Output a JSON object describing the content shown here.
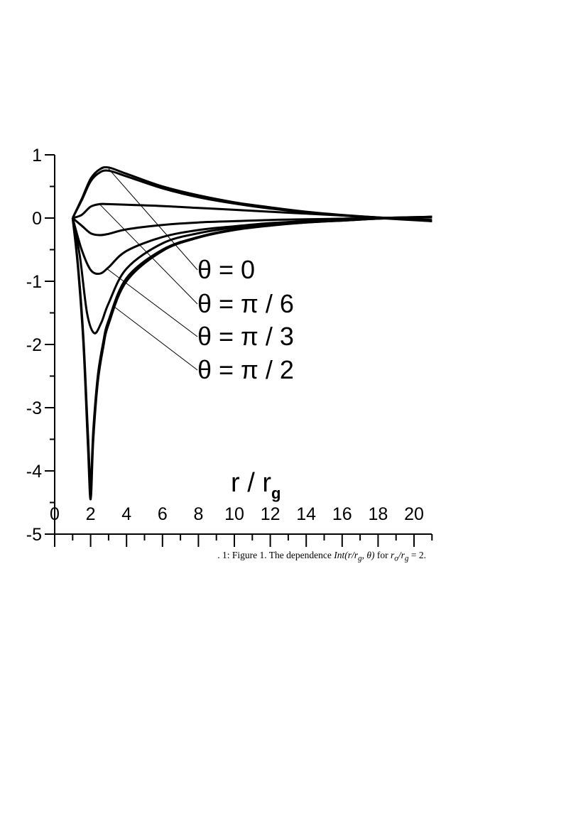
{
  "chart_data": {
    "type": "line",
    "xlabel_main": "r / r",
    "xlabel_sub": "g",
    "ylabel": "",
    "xlim": [
      0,
      21
    ],
    "ylim": [
      -5,
      1
    ],
    "x_ticks": [
      "0",
      "2",
      "4",
      "6",
      "8",
      "10",
      "12",
      "14",
      "16",
      "18",
      "20"
    ],
    "y_ticks": [
      "1",
      "0",
      "-1",
      "-2",
      "-3",
      "-4",
      "-5"
    ],
    "grid": false,
    "annotations": [
      "θ = 0",
      "θ = π / 6",
      "θ = π / 3",
      "θ = π / 2"
    ],
    "series": [
      {
        "name": "θ = 0",
        "points": [
          [
            1.0,
            0.0
          ],
          [
            1.5,
            0.3
          ],
          [
            2,
            0.62
          ],
          [
            2.5,
            0.77
          ],
          [
            3,
            0.8
          ],
          [
            4,
            0.7
          ],
          [
            6,
            0.5
          ],
          [
            8,
            0.36
          ],
          [
            10,
            0.25
          ],
          [
            12,
            0.17
          ],
          [
            14,
            0.1
          ],
          [
            16,
            0.05
          ],
          [
            18,
            0.01
          ],
          [
            21,
            -0.03
          ]
        ]
      },
      {
        "name": "",
        "points": [
          [
            1.0,
            0.0
          ],
          [
            1.5,
            0.28
          ],
          [
            2,
            0.58
          ],
          [
            2.5,
            0.72
          ],
          [
            3,
            0.75
          ],
          [
            4,
            0.66
          ],
          [
            6,
            0.47
          ],
          [
            8,
            0.33
          ],
          [
            10,
            0.23
          ],
          [
            12,
            0.15
          ],
          [
            14,
            0.09
          ],
          [
            16,
            0.04
          ],
          [
            18,
            0.0
          ],
          [
            21,
            -0.05
          ]
        ]
      },
      {
        "name": "θ = π / 6",
        "points": [
          [
            1.0,
            0.0
          ],
          [
            1.5,
            0.05
          ],
          [
            2,
            0.18
          ],
          [
            2.5,
            0.22
          ],
          [
            3,
            0.22
          ],
          [
            4,
            0.21
          ],
          [
            6,
            0.19
          ],
          [
            8,
            0.16
          ],
          [
            10,
            0.13
          ],
          [
            12,
            0.1
          ],
          [
            14,
            0.07
          ],
          [
            16,
            0.04
          ],
          [
            18,
            0.01
          ],
          [
            21,
            -0.05
          ]
        ]
      },
      {
        "name": "",
        "points": [
          [
            1.0,
            0.0
          ],
          [
            1.5,
            -0.12
          ],
          [
            2,
            -0.24
          ],
          [
            2.5,
            -0.27
          ],
          [
            3,
            -0.25
          ],
          [
            4,
            -0.18
          ],
          [
            6,
            -0.11
          ],
          [
            8,
            -0.07
          ],
          [
            10,
            -0.05
          ],
          [
            12,
            -0.03
          ],
          [
            14,
            -0.02
          ],
          [
            16,
            -0.01
          ],
          [
            18,
            0.0
          ],
          [
            21,
            0.01
          ]
        ]
      },
      {
        "name": "θ = π / 3",
        "points": [
          [
            1.0,
            0.0
          ],
          [
            1.5,
            -0.5
          ],
          [
            2,
            -0.82
          ],
          [
            2.5,
            -0.88
          ],
          [
            3,
            -0.78
          ],
          [
            4,
            -0.52
          ],
          [
            6,
            -0.3
          ],
          [
            8,
            -0.19
          ],
          [
            10,
            -0.13
          ],
          [
            12,
            -0.08
          ],
          [
            14,
            -0.05
          ],
          [
            16,
            -0.02
          ],
          [
            18,
            0.0
          ],
          [
            21,
            0.02
          ]
        ]
      },
      {
        "name": "",
        "points": [
          [
            1.0,
            0.0
          ],
          [
            1.4,
            -0.6
          ],
          [
            1.8,
            -1.5
          ],
          [
            2.2,
            -1.82
          ],
          [
            2.6,
            -1.65
          ],
          [
            3,
            -1.35
          ],
          [
            4,
            -0.8
          ],
          [
            6,
            -0.4
          ],
          [
            8,
            -0.24
          ],
          [
            10,
            -0.15
          ],
          [
            12,
            -0.09
          ],
          [
            14,
            -0.05
          ],
          [
            16,
            -0.03
          ],
          [
            18,
            0.0
          ],
          [
            21,
            0.02
          ]
        ]
      },
      {
        "name": "θ = π / 2",
        "points": [
          [
            1.0,
            0.0
          ],
          [
            1.3,
            -0.8
          ],
          [
            1.6,
            -2.0
          ],
          [
            1.85,
            -3.6
          ],
          [
            2.0,
            -4.45
          ],
          [
            2.15,
            -3.5
          ],
          [
            2.4,
            -2.6
          ],
          [
            2.7,
            -2.05
          ],
          [
            3,
            -1.68
          ],
          [
            4,
            -1.0
          ],
          [
            6,
            -0.52
          ],
          [
            8,
            -0.31
          ],
          [
            10,
            -0.19
          ],
          [
            12,
            -0.12
          ],
          [
            14,
            -0.07
          ],
          [
            16,
            -0.04
          ],
          [
            18,
            -0.01
          ],
          [
            21,
            0.02
          ]
        ]
      },
      {
        "name": "",
        "points": [
          [
            1.0,
            0.0
          ],
          [
            1.3,
            -0.75
          ],
          [
            1.6,
            -1.9
          ],
          [
            1.85,
            -3.4
          ],
          [
            2.0,
            -4.2
          ],
          [
            2.15,
            -3.35
          ],
          [
            2.4,
            -2.5
          ],
          [
            2.7,
            -1.97
          ],
          [
            3,
            -1.62
          ],
          [
            4,
            -0.95
          ],
          [
            6,
            -0.5
          ],
          [
            8,
            -0.3
          ],
          [
            10,
            -0.18
          ],
          [
            12,
            -0.11
          ],
          [
            14,
            -0.07
          ],
          [
            16,
            -0.04
          ],
          [
            18,
            -0.01
          ],
          [
            21,
            0.02
          ]
        ]
      }
    ],
    "leader_lines": [
      {
        "label": "θ = 0",
        "from": [
          3.0,
          0.78
        ]
      },
      {
        "label": "θ = π / 6",
        "from": [
          2.5,
          0.22
        ]
      },
      {
        "label": "θ = π / 3",
        "from": [
          2.9,
          -0.8
        ]
      },
      {
        "label": "θ = π / 2",
        "from": [
          3.3,
          -1.4
        ]
      }
    ]
  },
  "caption": {
    "prefix": ". 1: Figure 1.   The dependence ",
    "math1": "Int(r/r",
    "math1_sub": "g",
    "math1_end": ", θ)",
    "middle": " for ",
    "math2": "r",
    "math2_sub": "o",
    "math2_mid": "/r",
    "math2_sub2": "g",
    "suffix": " = 2."
  }
}
